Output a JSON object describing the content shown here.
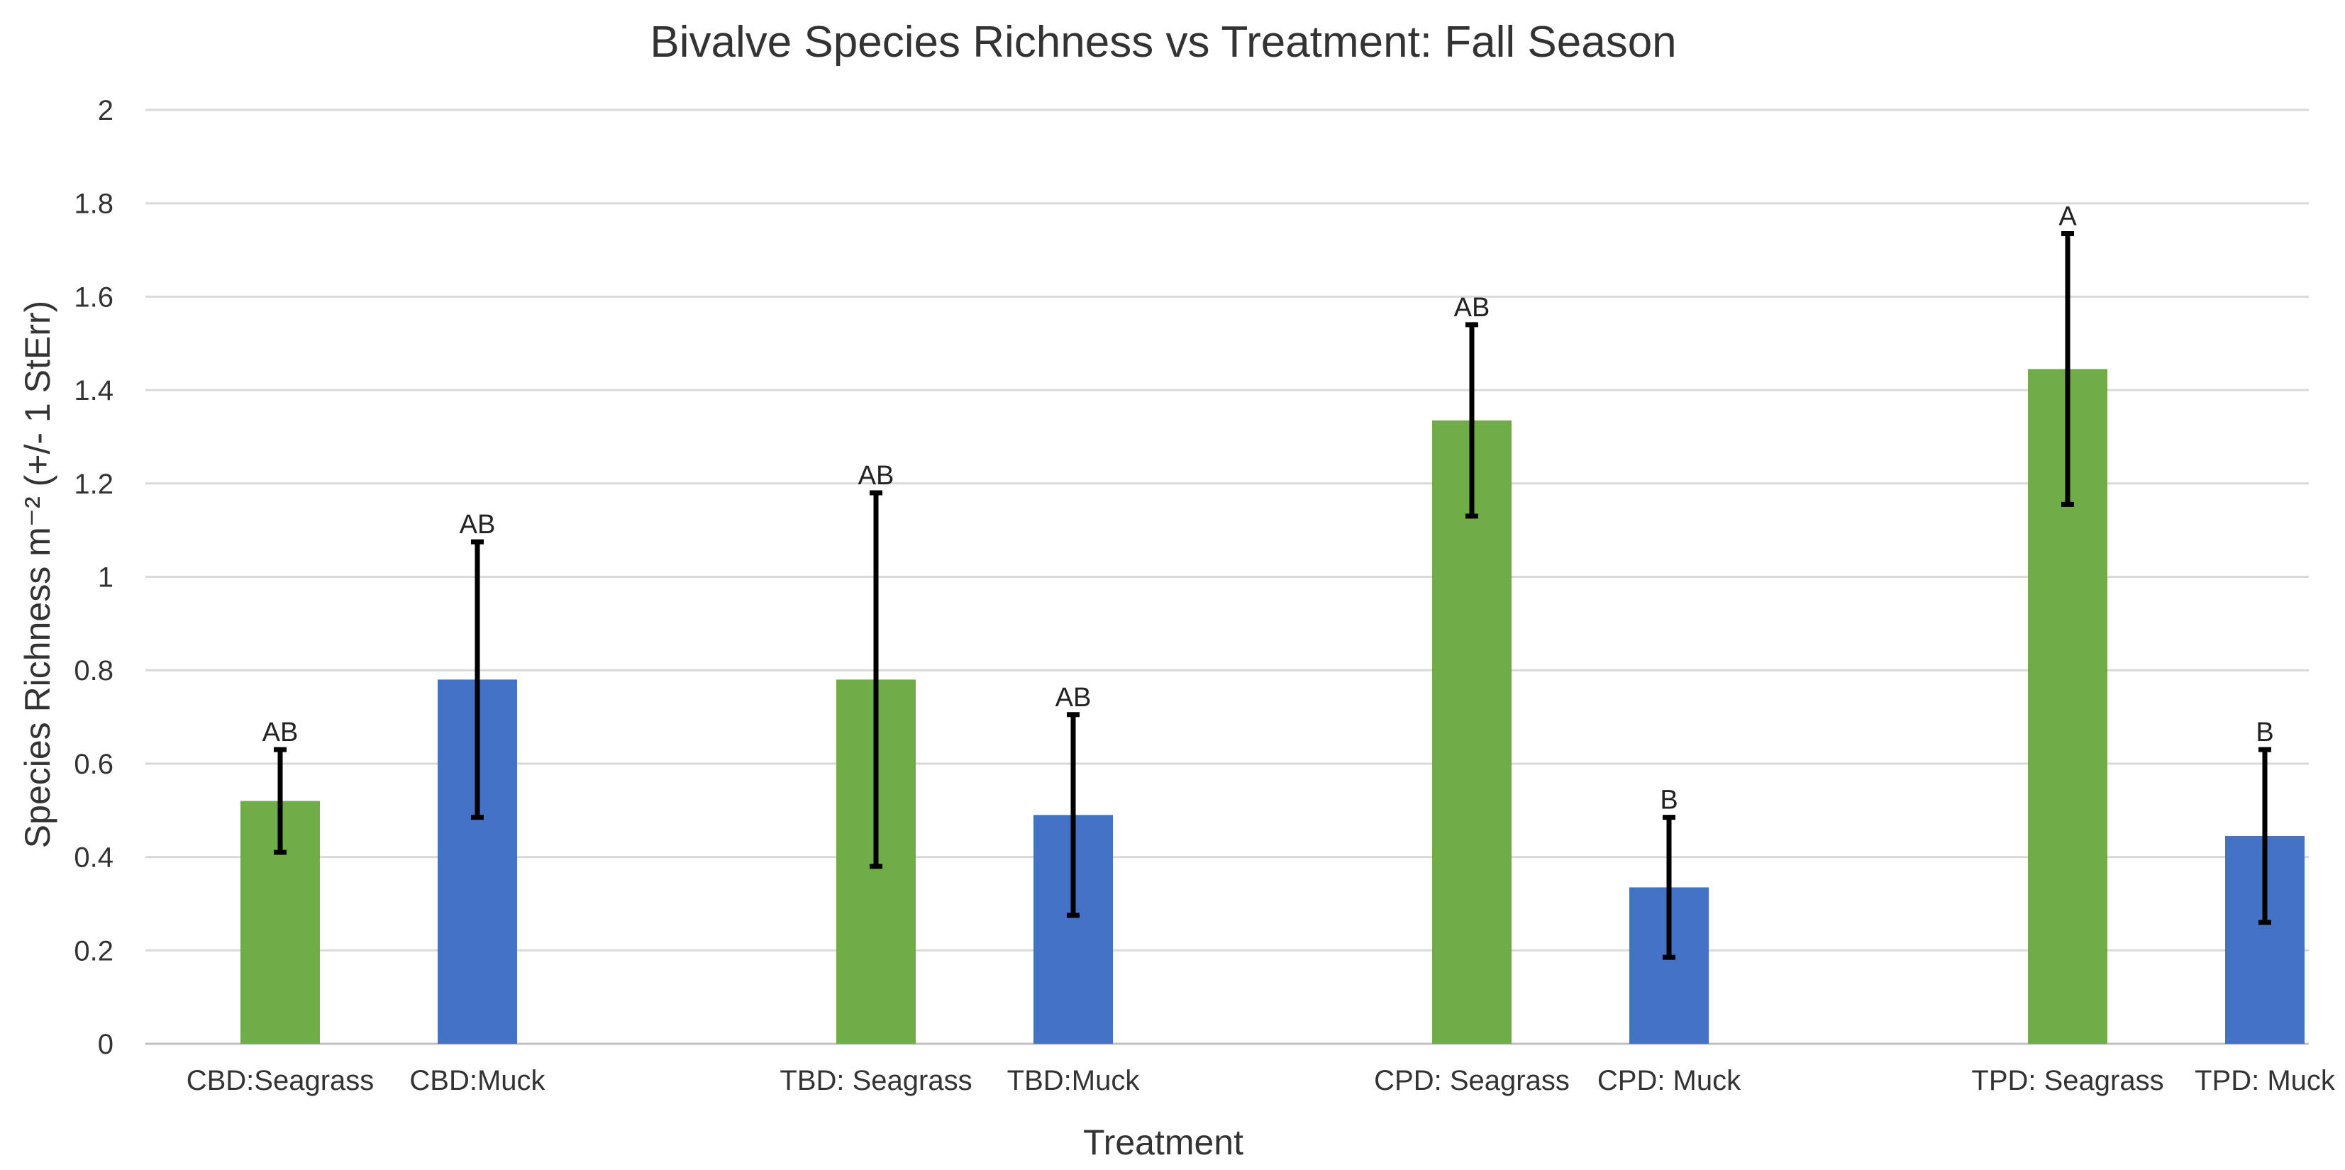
{
  "chart_data": {
    "type": "bar",
    "title": "Bivalve Species Richness vs Treatment: Fall Season",
    "xlabel": "Treatment",
    "ylabel": "Species Richness m⁻² (+/- 1 StErr)",
    "ylim": [
      0,
      2
    ],
    "yticks": [
      0,
      0.2,
      0.4,
      0.6,
      0.8,
      1,
      1.2,
      1.4,
      1.6,
      1.8,
      2
    ],
    "ytick_labels": [
      "0",
      "0.2",
      "0.4",
      "0.6",
      "0.8",
      "1",
      "1.2",
      "1.4",
      "1.6",
      "1.8",
      "2"
    ],
    "grid": true,
    "legend": "none",
    "categories": [
      "CBD:Seagrass",
      "CBD:Muck",
      "TBD: Seagrass",
      "TBD:Muck",
      "CPD: Seagrass",
      "CPD: Muck",
      "TPD: Seagrass",
      "TPD: Muck"
    ],
    "groups": [
      {
        "name": "CBD",
        "members": [
          0,
          1
        ]
      },
      {
        "name": "TBD",
        "members": [
          2,
          3
        ]
      },
      {
        "name": "CPD",
        "members": [
          4,
          5
        ]
      },
      {
        "name": "TPD",
        "members": [
          6,
          7
        ]
      }
    ],
    "values": [
      0.52,
      0.78,
      0.78,
      0.49,
      1.335,
      0.335,
      1.445,
      0.445
    ],
    "errors": [
      0.11,
      0.295,
      0.4,
      0.215,
      0.205,
      0.15,
      0.29,
      0.185
    ],
    "significance": [
      "AB",
      "AB",
      "AB",
      "AB",
      "AB",
      "B",
      "A",
      "B"
    ],
    "bar_colors": [
      "#70ad47",
      "#4472c4",
      "#70ad47",
      "#4472c4",
      "#70ad47",
      "#4472c4",
      "#70ad47",
      "#4472c4"
    ]
  }
}
